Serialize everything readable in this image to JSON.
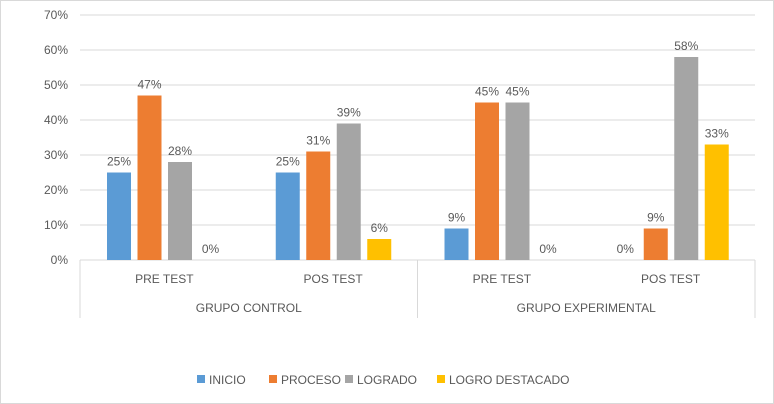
{
  "chart_data": {
    "type": "bar",
    "title": "",
    "xlabel": "",
    "ylabel": "",
    "ylim": [
      0,
      70
    ],
    "yticks": [
      "0%",
      "10%",
      "20%",
      "30%",
      "40%",
      "50%",
      "60%",
      "70%"
    ],
    "grid": true,
    "legend_position": "bottom",
    "groups": [
      {
        "label": "GRUPO  CONTROL",
        "categories": [
          "PRE TEST",
          "POS TEST"
        ]
      },
      {
        "label": "GRUPO EXPERIMENTAL",
        "categories": [
          "PRE TEST",
          "POS TEST"
        ]
      }
    ],
    "categories": [
      "PRE TEST",
      "POS TEST",
      "PRE TEST",
      "POS TEST"
    ],
    "series": [
      {
        "name": "INICIO",
        "color": "#5b9bd5",
        "values": [
          25,
          25,
          9,
          0
        ]
      },
      {
        "name": "PROCESO",
        "color": "#ed7d31",
        "values": [
          47,
          31,
          45,
          9
        ]
      },
      {
        "name": "LOGRADO",
        "color": "#a5a5a5",
        "values": [
          28,
          39,
          45,
          58
        ]
      },
      {
        "name": "LOGRO DESTACADO",
        "color": "#ffc000",
        "values": [
          0,
          6,
          0,
          33
        ]
      }
    ]
  }
}
